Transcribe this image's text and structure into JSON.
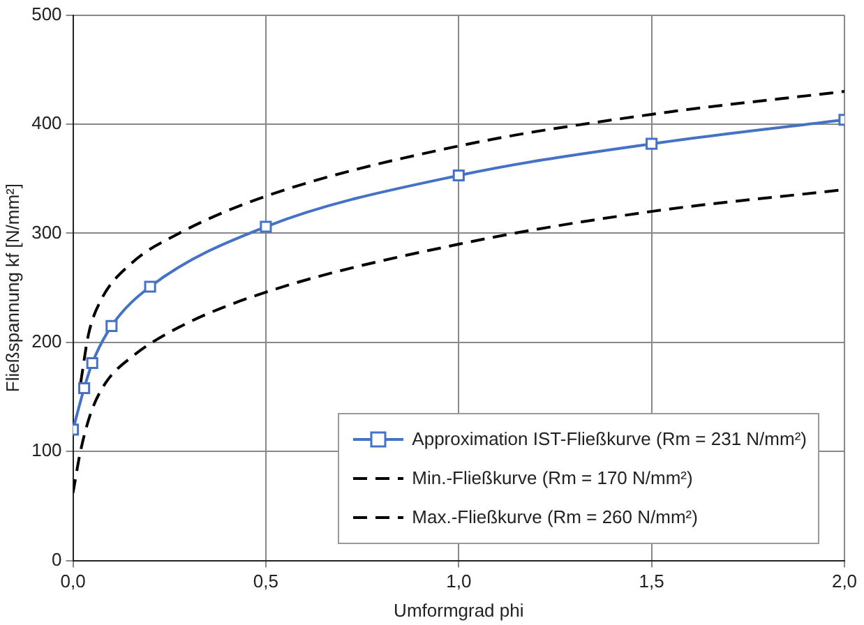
{
  "chart_data": {
    "type": "line",
    "xlabel": "Umformgrad phi",
    "ylabel": "Fließspannung kf [N/mm²]",
    "xlim": [
      0,
      2
    ],
    "xticks": [
      {
        "value": 0,
        "label": "0,0"
      },
      {
        "value": 0.5,
        "label": "0,5"
      },
      {
        "value": 1,
        "label": "1,0"
      },
      {
        "value": 1.5,
        "label": "1,5"
      },
      {
        "value": 2,
        "label": "2,0"
      }
    ],
    "ylim": [
      0,
      500
    ],
    "yticks": [
      0,
      100,
      200,
      300,
      400,
      500
    ],
    "grid": true,
    "legend": "bottom right",
    "series": [
      {
        "name": "Approximation IST-Fließkurve (Rm = 231 N/mm²)",
        "color": "#4472c4",
        "marker": "square",
        "line_style": "solid",
        "x": [
          0,
          0.029,
          0.05,
          0.1,
          0.2,
          0.5,
          1.0,
          1.5,
          2.0
        ],
        "values": [
          120,
          158,
          181,
          215,
          251,
          306,
          353,
          382,
          404
        ]
      },
      {
        "name": "Min.-Fließkurve (Rm = 170 N/mm²)",
        "color": "#000000",
        "marker": "none",
        "line_style": "dashed",
        "x": [
          0,
          0.02,
          0.047,
          0.085,
          0.15,
          0.27,
          0.5,
          1.0,
          1.5,
          2.0
        ],
        "values": [
          62,
          101,
          136,
          163,
          186,
          213,
          246,
          290,
          320,
          340
        ]
      },
      {
        "name": "Max.-Fließkurve (Rm = 260 N/mm²)",
        "color": "#000000",
        "marker": "none",
        "line_style": "dashed",
        "x": [
          0.02,
          0.04,
          0.07,
          0.15,
          0.27,
          0.5,
          1.0,
          1.5,
          2.0
        ],
        "values": [
          163,
          207,
          237,
          272,
          299,
          334,
          380,
          409,
          430
        ]
      }
    ]
  }
}
